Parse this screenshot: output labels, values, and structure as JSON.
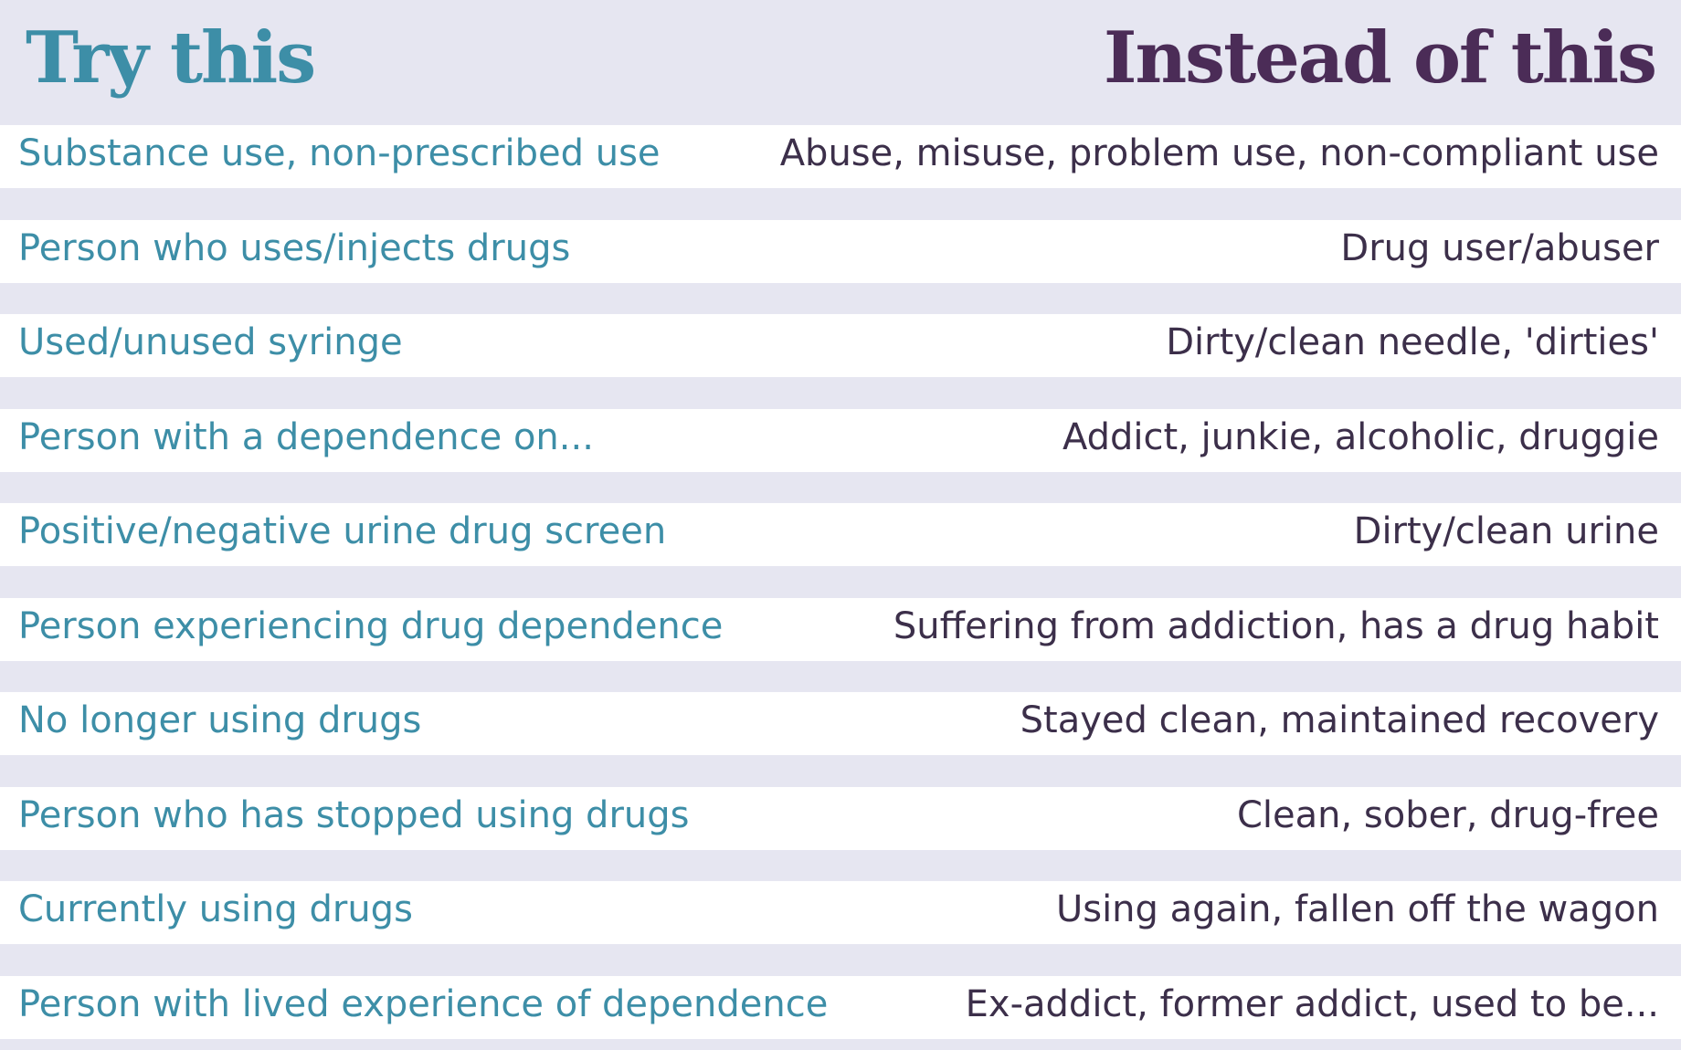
{
  "header": {
    "try_label": "Try this",
    "instead_label": "Instead of this"
  },
  "rows": [
    {
      "try": "Substance use, non-prescribed use",
      "instead": "Abuse, misuse, problem use, non-compliant use"
    },
    {
      "try": "Person who uses/injects drugs",
      "instead": "Drug user/abuser"
    },
    {
      "try": "Used/unused syringe",
      "instead": "Dirty/clean needle, 'dirties'"
    },
    {
      "try": "Person with a dependence on...",
      "instead": "Addict, junkie, alcoholic, druggie"
    },
    {
      "try": "Positive/negative urine drug screen",
      "instead": "Dirty/clean urine"
    },
    {
      "try": "Person experiencing drug dependence",
      "instead": "Suffering from addiction, has a drug habit"
    },
    {
      "try": "No longer using drugs",
      "instead": "Stayed clean, maintained recovery"
    },
    {
      "try": "Person who has stopped using drugs",
      "instead": "Clean, sober, drug-free"
    },
    {
      "try": "Currently using drugs",
      "instead": "Using again, fallen off the wagon"
    },
    {
      "try": "Person with lived experience of dependence",
      "instead": "Ex-addict, former addict, used to be..."
    }
  ],
  "colors": {
    "background": "#e6e6f1",
    "row_background": "#ffffff",
    "try_color": "#3d8ea7",
    "instead_header_color": "#4b2c57",
    "instead_text_color": "#3c2f4a"
  }
}
